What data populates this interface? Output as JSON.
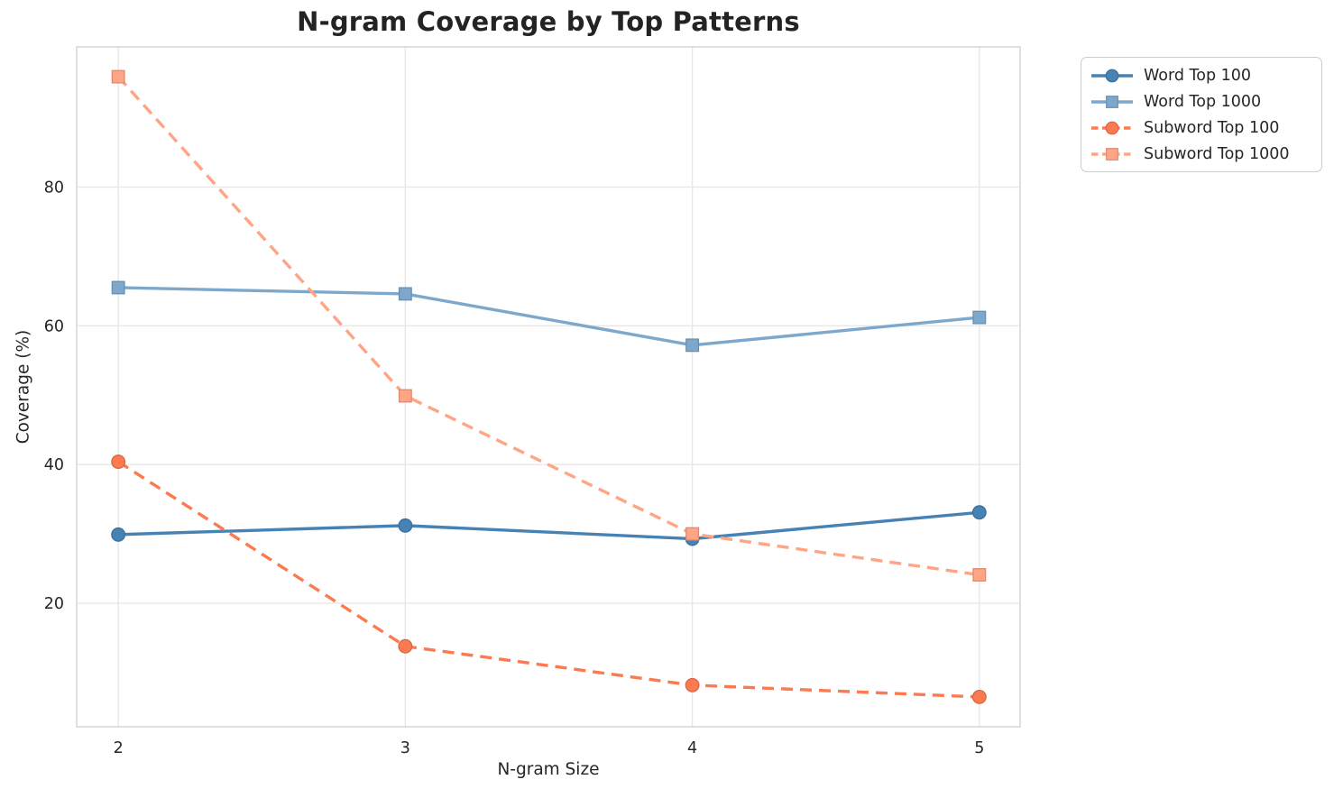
{
  "chart_data": {
    "type": "line",
    "title": "N-gram Coverage by Top Patterns",
    "xlabel": "N-gram Size",
    "ylabel": "Coverage (%)",
    "x": [
      2,
      3,
      4,
      5
    ],
    "xticks": [
      "2",
      "3",
      "4",
      "5"
    ],
    "yticks": [
      20,
      40,
      60,
      80
    ],
    "xlim": [
      1.855,
      5.142
    ],
    "ylim": [
      2.2,
      100.2
    ],
    "grid": true,
    "legend_position": "outside-upper-right",
    "series": [
      {
        "name": "Word Top 100",
        "values": [
          29.9,
          31.2,
          29.3,
          33.1
        ],
        "color": "#4682b4",
        "line_style": "solid",
        "marker": "circle"
      },
      {
        "name": "Word Top 1000",
        "values": [
          65.5,
          64.6,
          57.2,
          61.2
        ],
        "color": "#7da8cb",
        "line_style": "solid",
        "marker": "square"
      },
      {
        "name": "Subword Top 100",
        "values": [
          40.4,
          13.8,
          8.2,
          6.5
        ],
        "color": "#fb7a50",
        "line_style": "dashed",
        "marker": "circle"
      },
      {
        "name": "Subword Top 1000",
        "values": [
          95.9,
          49.9,
          30.0,
          24.1
        ],
        "color": "#ffa585",
        "line_style": "dashed",
        "marker": "square"
      }
    ],
    "grid_color": "#e7e7e7",
    "frame_color": "#cfcfcf",
    "text_color": "#262626"
  }
}
